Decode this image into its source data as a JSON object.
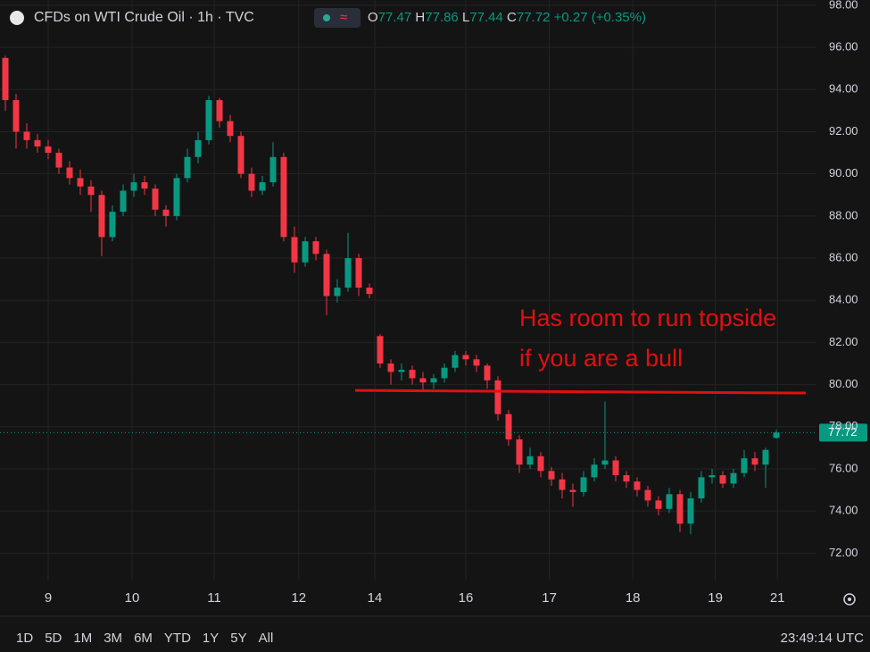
{
  "chart_data": {
    "type": "candlestick",
    "title": "CFDs on WTI Crude Oil · 1h · TVC",
    "ohlc_letters": [
      "O",
      "H",
      "L",
      "C"
    ],
    "change_text": "+0.27 (+0.35%)",
    "up_color": "#089981",
    "down_color": "#f23645",
    "x": [
      0,
      1,
      2,
      3,
      4,
      5,
      6,
      7,
      8,
      9,
      10,
      11,
      12,
      13,
      14,
      15,
      16,
      17,
      18,
      19,
      20,
      21,
      22,
      23,
      24,
      25,
      26,
      27,
      28,
      29,
      30,
      31,
      32,
      33,
      34,
      35,
      36,
      37,
      38,
      39,
      40,
      41,
      42,
      43,
      44,
      45,
      46,
      47,
      48,
      49,
      50,
      51,
      52,
      53,
      54,
      55,
      56,
      57,
      58,
      59,
      60,
      61,
      62,
      63,
      64,
      65,
      66,
      67,
      68,
      69,
      70,
      71,
      72
    ],
    "open": [
      95.5,
      93.5,
      92.0,
      91.6,
      91.3,
      91.0,
      90.3,
      89.8,
      89.4,
      89.0,
      87.0,
      88.2,
      89.2,
      89.6,
      89.3,
      88.3,
      88.0,
      89.8,
      90.8,
      91.6,
      93.5,
      92.5,
      91.8,
      90.0,
      89.2,
      89.6,
      90.8,
      87.0,
      85.8,
      86.8,
      86.2,
      84.2,
      84.6,
      86.0,
      84.6,
      82.3,
      81.0,
      80.6,
      80.7,
      80.3,
      80.1,
      80.3,
      80.8,
      81.4,
      81.2,
      80.9,
      80.2,
      78.6,
      77.4,
      76.2,
      76.6,
      75.9,
      75.5,
      75.0,
      74.9,
      75.6,
      76.2,
      76.4,
      75.7,
      75.4,
      75.0,
      74.5,
      74.1,
      74.8,
      73.4,
      74.6,
      75.6,
      75.7,
      75.3,
      75.8,
      76.5,
      76.2,
      77.47
    ],
    "high": [
      95.6,
      93.8,
      92.4,
      91.9,
      91.6,
      91.2,
      90.6,
      90.2,
      89.7,
      89.2,
      88.5,
      89.5,
      90.0,
      89.9,
      89.5,
      88.5,
      90.0,
      91.2,
      92.0,
      93.7,
      93.6,
      92.8,
      92.0,
      90.3,
      89.9,
      91.5,
      91.0,
      87.5,
      87.0,
      87.0,
      86.4,
      85.0,
      87.2,
      86.2,
      84.8,
      82.4,
      81.2,
      81.0,
      80.9,
      80.6,
      80.5,
      81.0,
      81.6,
      81.6,
      81.4,
      81.0,
      80.4,
      78.8,
      77.6,
      77.0,
      76.8,
      76.1,
      75.8,
      75.3,
      75.9,
      76.5,
      79.2,
      76.6,
      75.9,
      75.6,
      75.2,
      74.7,
      75.1,
      75.0,
      74.9,
      75.9,
      76.0,
      75.9,
      76.0,
      76.9,
      76.8,
      77.0,
      77.86
    ],
    "low": [
      93.0,
      91.2,
      91.2,
      91.0,
      90.7,
      90.0,
      89.5,
      89.0,
      88.2,
      86.1,
      86.8,
      88.0,
      88.9,
      89.0,
      88.0,
      87.5,
      87.8,
      89.6,
      90.5,
      91.4,
      92.2,
      91.5,
      89.8,
      88.9,
      89.0,
      89.4,
      86.8,
      85.3,
      85.6,
      85.9,
      83.3,
      83.9,
      84.4,
      84.2,
      84.1,
      80.8,
      80.0,
      80.2,
      80.0,
      79.7,
      79.8,
      80.1,
      80.6,
      80.9,
      80.6,
      79.8,
      78.3,
      77.1,
      75.8,
      76.0,
      75.6,
      75.2,
      74.6,
      74.2,
      74.7,
      75.4,
      76.0,
      75.4,
      75.1,
      74.7,
      74.2,
      73.8,
      73.9,
      73.0,
      72.9,
      74.4,
      75.3,
      75.1,
      75.1,
      75.6,
      75.9,
      75.1,
      77.44
    ],
    "close": [
      93.5,
      92.0,
      91.6,
      91.3,
      91.0,
      90.3,
      89.8,
      89.4,
      89.0,
      87.0,
      88.2,
      89.2,
      89.6,
      89.3,
      88.3,
      88.0,
      89.8,
      90.8,
      91.6,
      93.5,
      92.5,
      91.8,
      90.0,
      89.2,
      89.6,
      90.8,
      87.0,
      85.8,
      86.8,
      86.2,
      84.2,
      84.6,
      86.0,
      84.6,
      84.3,
      81.0,
      80.6,
      80.7,
      80.3,
      80.1,
      80.3,
      80.8,
      81.4,
      81.2,
      80.9,
      80.2,
      78.6,
      77.4,
      76.2,
      76.6,
      75.9,
      75.5,
      75.0,
      74.9,
      75.6,
      76.2,
      76.4,
      75.7,
      75.4,
      75.0,
      74.5,
      74.1,
      74.8,
      73.4,
      74.6,
      75.6,
      75.7,
      75.3,
      75.8,
      76.5,
      76.2,
      76.9,
      77.72
    ],
    "last_price": 77.72,
    "xlim": [
      -0.5,
      75.75
    ],
    "xticks": [
      {
        "value": 4,
        "label": "9"
      },
      {
        "value": 11.83,
        "label": "10"
      },
      {
        "value": 19.5,
        "label": "11"
      },
      {
        "value": 27.4,
        "label": "12"
      },
      {
        "value": 34.5,
        "label": "14"
      },
      {
        "value": 43,
        "label": "16"
      },
      {
        "value": 50.8,
        "label": "17"
      },
      {
        "value": 58.6,
        "label": "18"
      },
      {
        "value": 66.3,
        "label": "19"
      },
      {
        "value": 72.1,
        "label": "21"
      }
    ],
    "ylim": [
      70.7,
      98.25
    ],
    "yticks": [
      {
        "value": 72,
        "label": "72.00"
      },
      {
        "value": 74,
        "label": "74.00"
      },
      {
        "value": 76,
        "label": "76.00"
      },
      {
        "value": 78,
        "label": "78.00"
      },
      {
        "value": 80,
        "label": "80.00"
      },
      {
        "value": 82,
        "label": "82.00"
      },
      {
        "value": 84,
        "label": "84.00"
      },
      {
        "value": 86,
        "label": "86.00"
      },
      {
        "value": 88,
        "label": "88.00"
      },
      {
        "value": 90,
        "label": "90.00"
      },
      {
        "value": 92,
        "label": "92.00"
      },
      {
        "value": 94,
        "label": "94.00"
      },
      {
        "value": 96,
        "label": "96.00"
      },
      {
        "value": 98,
        "label": "98.00"
      }
    ],
    "grid": true,
    "trendline": {
      "x": [
        32.67,
        74.75
      ],
      "y": [
        79.72,
        79.6
      ],
      "color": "#e01010"
    },
    "annotation": {
      "lines": [
        "Has room to run topside",
        "if you are a bull"
      ],
      "color": "#e01010"
    }
  },
  "ui": {
    "ranges": [
      "1D",
      "5D",
      "1M",
      "3M",
      "6M",
      "YTD",
      "1Y",
      "5Y",
      "All"
    ],
    "clock": "23:49:14 UTC"
  }
}
